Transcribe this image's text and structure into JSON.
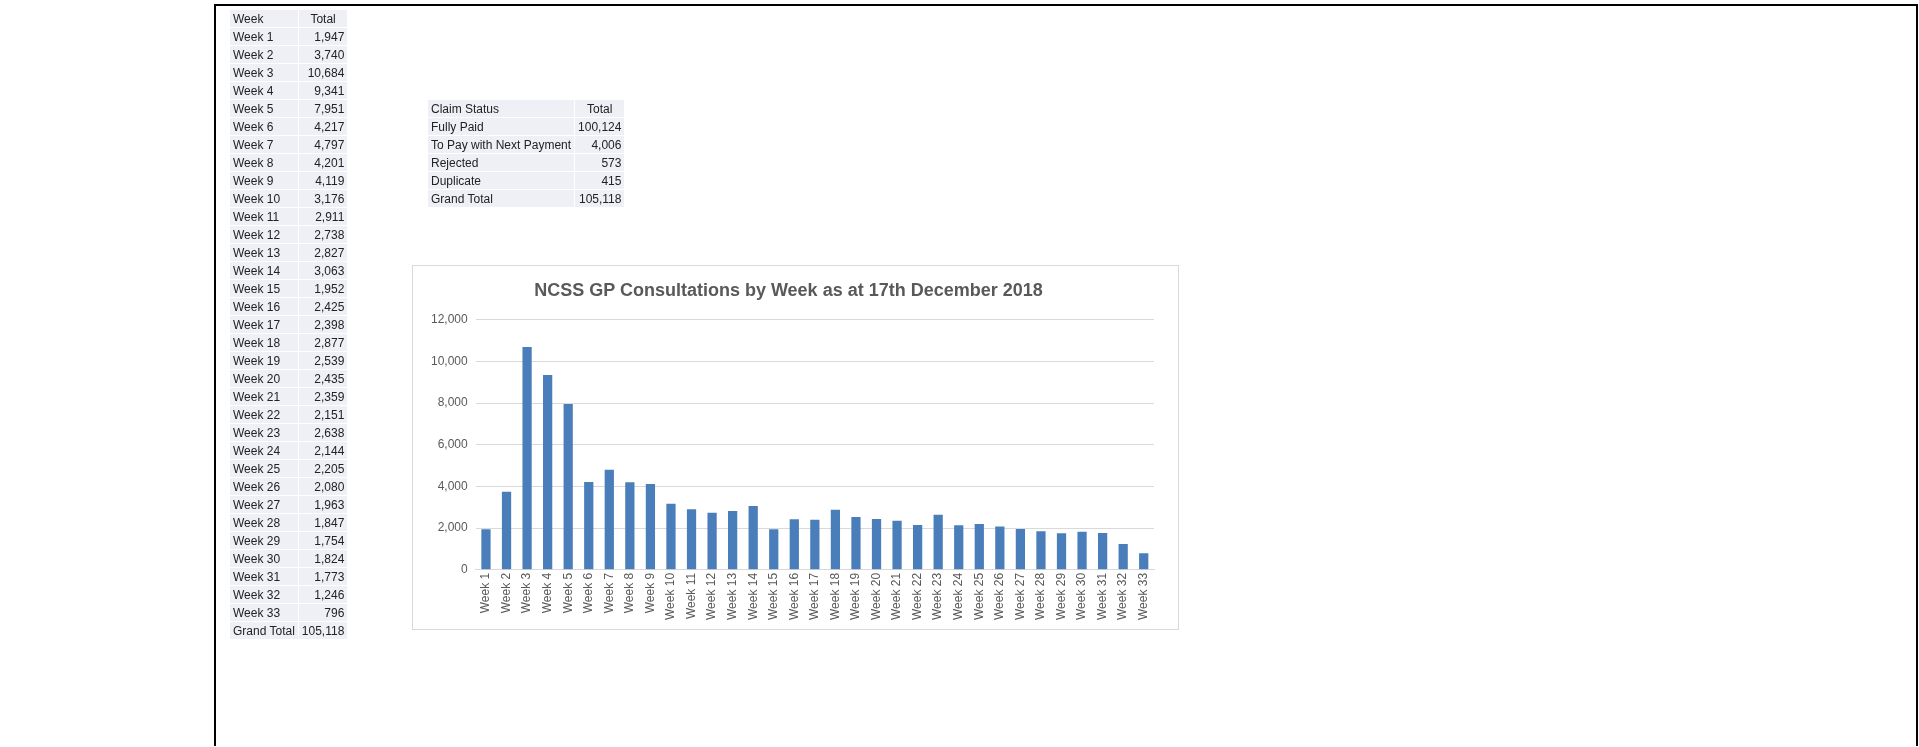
{
  "chart_data": [
    {
      "type": "other",
      "xlabel": "Week",
      "ylabel": "Total",
      "categories": [
        "Week 1",
        "Week 2",
        "Week 3",
        "Week 4",
        "Week 5",
        "Week 6",
        "Week 7",
        "Week 8",
        "Week 9",
        "Week 10",
        "Week 11",
        "Week 12",
        "Week 13",
        "Week 14",
        "Week 15",
        "Week 16",
        "Week 17",
        "Week 18",
        "Week 19",
        "Week 20",
        "Week 21",
        "Week 22",
        "Week 23",
        "Week 24",
        "Week 25",
        "Week 26",
        "Week 27",
        "Week 28",
        "Week 29",
        "Week 30",
        "Week 31",
        "Week 32",
        "Week 33",
        "Grand Total"
      ],
      "value_labels": [
        "1,947",
        "3,740",
        "10,684",
        "9,341",
        "7,951",
        "4,217",
        "4,797",
        "4,201",
        "4,119",
        "3,176",
        "2,911",
        "2,738",
        "2,827",
        "3,063",
        "1,952",
        "2,425",
        "2,398",
        "2,877",
        "2,539",
        "2,435",
        "2,359",
        "2,151",
        "2,638",
        "2,144",
        "2,205",
        "2,080",
        "1,963",
        "1,847",
        "1,754",
        "1,824",
        "1,773",
        "1,246",
        "796",
        "105,118"
      ]
    },
    {
      "type": "other",
      "xlabel": "Claim Status",
      "ylabel": "Total",
      "categories": [
        "Fully Paid",
        "To Pay with Next Payment",
        "Rejected",
        "Duplicate",
        "Grand Total"
      ],
      "value_labels": [
        "100,124",
        "4,006",
        "573",
        "415",
        "105,118"
      ]
    },
    {
      "type": "bar",
      "title": "NCSS GP Consultations by Week as at 17th December 2018",
      "categories": [
        "Week 1",
        "Week 2",
        "Week 3",
        "Week 4",
        "Week 5",
        "Week 6",
        "Week 7",
        "Week 8",
        "Week 9",
        "Week 10",
        "Week 11",
        "Week 12",
        "Week 13",
        "Week 14",
        "Week 15",
        "Week 16",
        "Week 17",
        "Week 18",
        "Week 19",
        "Week 20",
        "Week 21",
        "Week 22",
        "Week 23",
        "Week 24",
        "Week 25",
        "Week 26",
        "Week 27",
        "Week 28",
        "Week 29",
        "Week 30",
        "Week 31",
        "Week 32",
        "Week 33"
      ],
      "values": [
        1947,
        3740,
        10684,
        9341,
        7951,
        4217,
        4797,
        4201,
        4119,
        3176,
        2911,
        2738,
        2827,
        3063,
        1952,
        2425,
        2398,
        2877,
        2539,
        2435,
        2359,
        2151,
        2638,
        2144,
        2205,
        2080,
        1963,
        1847,
        1754,
        1824,
        1773,
        1246,
        796
      ],
      "color": "#4a7ebb",
      "ylim": [
        0,
        12000
      ],
      "yticks": [
        0,
        {
          "value": 2000,
          "label": "2,000"
        },
        {
          "value": 4000,
          "label": "4,000"
        },
        {
          "value": 6000,
          "label": "6,000"
        },
        {
          "value": 8000,
          "label": "8,000"
        },
        {
          "value": 10000,
          "label": "10,000"
        },
        {
          "value": 12000,
          "label": "12,000"
        }
      ],
      "grid": "y"
    }
  ]
}
